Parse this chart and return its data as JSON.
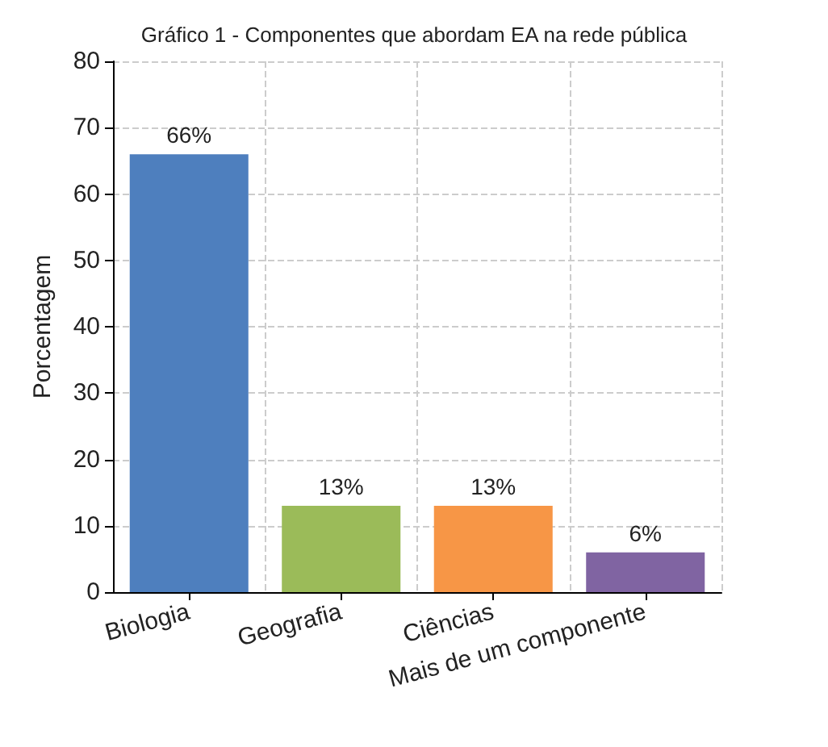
{
  "chart_data": {
    "type": "bar",
    "title": "Gráfico 1 - Componentes que abordam EA na rede pública",
    "ylabel": "Porcentagem",
    "categories": [
      "Biologia",
      "Geografia",
      "Ciências",
      "Mais de um componente"
    ],
    "values": [
      66,
      13,
      13,
      6
    ],
    "colors": [
      "#4e7fbe",
      "#9bbb59",
      "#f79646",
      "#8064a2"
    ],
    "value_labels": [
      "66%",
      "13%",
      "13%",
      "6%"
    ],
    "ylim": [
      0,
      80
    ],
    "yticks": [
      0,
      10,
      20,
      30,
      40,
      50,
      60,
      70,
      80
    ],
    "grid": true
  }
}
